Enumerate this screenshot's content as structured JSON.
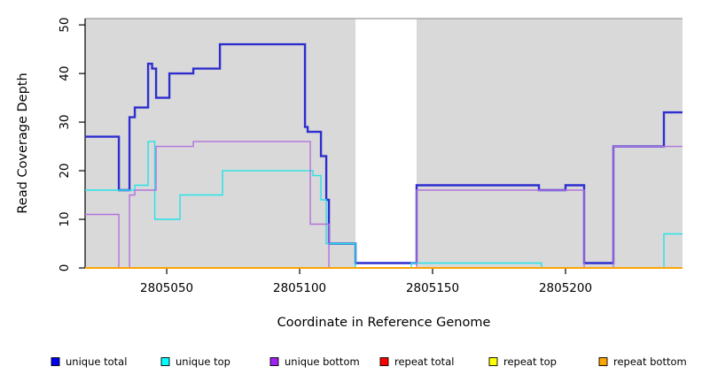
{
  "chart_data": {
    "type": "line",
    "step": true,
    "title": "",
    "xlabel": "Coordinate in Reference Genome",
    "ylabel": "Read Coverage Depth",
    "xlim": [
      2805019.3,
      2805244
    ],
    "ylim": [
      0,
      51.3
    ],
    "x_ticks": [
      2805050,
      2805100,
      2805150,
      2805200
    ],
    "y_ticks": [
      0,
      10,
      20,
      30,
      40,
      50
    ],
    "panel_color": "#d9d9d9",
    "panel_top_line_color": "#9a9a9a",
    "axis_color": "#000000",
    "grid": false,
    "shaded_regions": [
      [
        2805019.3,
        2805121
      ],
      [
        2805144,
        2805244
      ]
    ],
    "gap_region": [
      2805121,
      2805144
    ],
    "legend_position": "bottom",
    "series": [
      {
        "name": "unique total",
        "color": "#2e2ed0",
        "width": 2.4,
        "points": [
          [
            2805019.3,
            27
          ],
          [
            2805032,
            16
          ],
          [
            2805036,
            31
          ],
          [
            2805038,
            33
          ],
          [
            2805043,
            42
          ],
          [
            2805044.5,
            41
          ],
          [
            2805046,
            35
          ],
          [
            2805051,
            40
          ],
          [
            2805060,
            41
          ],
          [
            2805070,
            46
          ],
          [
            2805102,
            29
          ],
          [
            2805103,
            28
          ],
          [
            2805108,
            23
          ],
          [
            2805110,
            14
          ],
          [
            2805111,
            5
          ],
          [
            2805121,
            1
          ],
          [
            2805144,
            17
          ],
          [
            2805190,
            16
          ],
          [
            2805200,
            17
          ],
          [
            2805207,
            1
          ],
          [
            2805218,
            25
          ],
          [
            2805237,
            32
          ]
        ]
      },
      {
        "name": "unique top",
        "color": "#25e3e8",
        "width": 1.4,
        "points": [
          [
            2805019.3,
            16
          ],
          [
            2805038,
            17
          ],
          [
            2805043,
            26
          ],
          [
            2805045.5,
            10
          ],
          [
            2805055,
            15
          ],
          [
            2805071,
            20
          ],
          [
            2805105,
            19
          ],
          [
            2805108,
            14
          ],
          [
            2805110,
            5
          ],
          [
            2805121,
            0
          ],
          [
            2805142,
            1
          ],
          [
            2805191,
            0
          ],
          [
            2805237,
            7
          ]
        ]
      },
      {
        "name": "unique bottom",
        "color": "#b272de",
        "width": 1.4,
        "points": [
          [
            2805019.3,
            11
          ],
          [
            2805032,
            0
          ],
          [
            2805036,
            15
          ],
          [
            2805038,
            16
          ],
          [
            2805046,
            25
          ],
          [
            2805060,
            26
          ],
          [
            2805104,
            9
          ],
          [
            2805111,
            0
          ],
          [
            2805144,
            16
          ],
          [
            2805207,
            0
          ],
          [
            2805218,
            25
          ]
        ]
      },
      {
        "name": "repeat total",
        "color": "#dd3333",
        "width": 2.0,
        "points": [
          [
            2805019.3,
            0
          ]
        ]
      },
      {
        "name": "repeat top",
        "color": "#ffff00",
        "width": 1.4,
        "points": [
          [
            2805019.3,
            0
          ]
        ]
      },
      {
        "name": "repeat bottom",
        "color": "#ffa500",
        "width": 1.7,
        "points": [
          [
            2805019.3,
            0
          ]
        ]
      }
    ],
    "legend": [
      {
        "label": "unique total",
        "swatch_color": "#0000ee"
      },
      {
        "label": "unique top",
        "swatch_color": "#00ffff"
      },
      {
        "label": "unique bottom",
        "swatch_color": "#a020f0"
      },
      {
        "label": "repeat total",
        "swatch_color": "#ff0000"
      },
      {
        "label": "repeat top",
        "swatch_color": "#ffff00"
      },
      {
        "label": "repeat bottom",
        "swatch_color": "#ffa500"
      }
    ]
  }
}
